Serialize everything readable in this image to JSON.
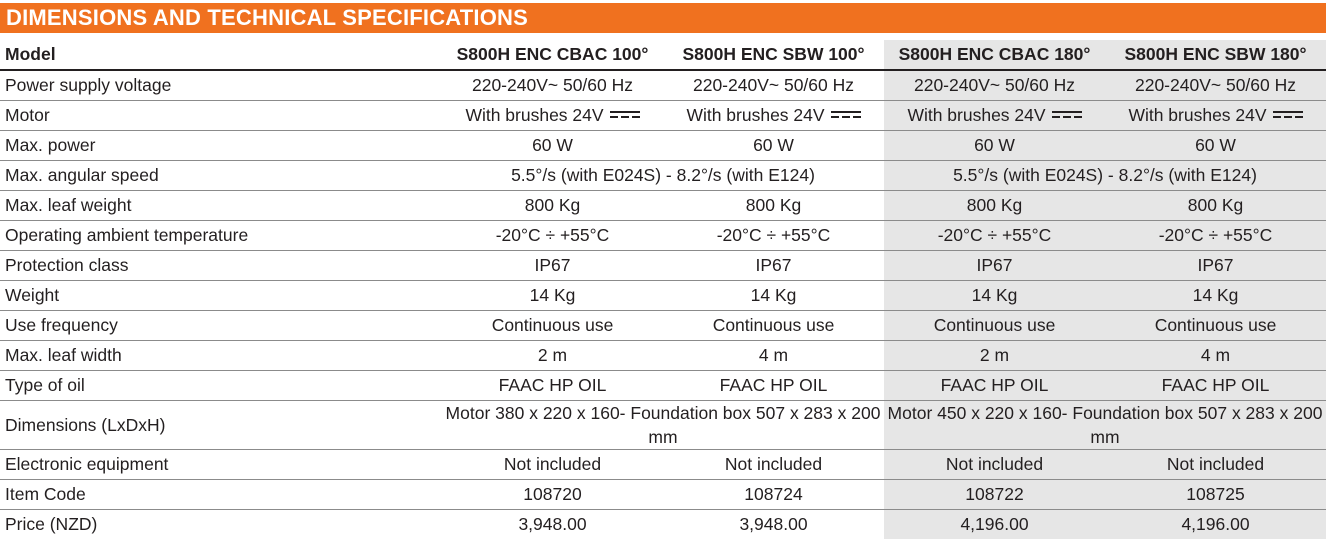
{
  "banner": {
    "title": "DIMENSIONS AND TECHNICAL SPECIFICATIONS"
  },
  "colors": {
    "accent": "#f0711f",
    "shade": "#e6e6e6",
    "rule": "#8b8b8b"
  },
  "table": {
    "header": {
      "label": "Model",
      "cols": [
        "S800H ENC CBAC 100°",
        "S800H ENC SBW 100°",
        "S800H ENC CBAC 180°",
        "S800H ENC SBW 180°"
      ]
    },
    "rows": {
      "power_supply": {
        "label": "Power supply voltage",
        "v": [
          "220-240V~ 50/60 Hz",
          "220-240V~ 50/60 Hz",
          "220-240V~ 50/60 Hz",
          "220-240V~ 50/60 Hz"
        ]
      },
      "motor": {
        "label": "Motor",
        "v": [
          "With brushes 24V",
          "With brushes 24V",
          "With brushes 24V",
          "With brushes 24V"
        ],
        "icon": "direct-current-symbol-icon"
      },
      "max_power": {
        "label": "Max. power",
        "v": [
          "60 W",
          "60 W",
          "60 W",
          "60 W"
        ]
      },
      "angular_speed": {
        "label": "Max. angular speed",
        "v": [
          "5.5°/s (with E024S) - 8.2°/s (with E124)",
          "5.5°/s (with E024S) - 8.2°/s (with E124)"
        ]
      },
      "leaf_weight": {
        "label": "Max. leaf weight",
        "v": [
          "800 Kg",
          "800 Kg",
          "800 Kg",
          "800 Kg"
        ]
      },
      "temperature": {
        "label": "Operating ambient temperature",
        "v": [
          "-20°C ÷ +55°C",
          "-20°C ÷ +55°C",
          "-20°C ÷ +55°C",
          "-20°C ÷ +55°C"
        ]
      },
      "protection": {
        "label": "Protection class",
        "v": [
          "IP67",
          "IP67",
          "IP67",
          "IP67"
        ]
      },
      "weight": {
        "label": "Weight",
        "v": [
          "14 Kg",
          "14 Kg",
          "14 Kg",
          "14 Kg"
        ]
      },
      "use_frequency": {
        "label": "Use frequency",
        "v": [
          "Continuous use",
          "Continuous use",
          "Continuous use",
          "Continuous use"
        ]
      },
      "leaf_width": {
        "label": "Max. leaf width",
        "v": [
          "2 m",
          "4 m",
          "2 m",
          "4 m"
        ]
      },
      "oil": {
        "label": "Type of oil",
        "v": [
          "FAAC HP OIL",
          "FAAC HP OIL",
          "FAAC HP OIL",
          "FAAC HP OIL"
        ]
      },
      "dimensions": {
        "label": "Dimensions (LxDxH)",
        "v": [
          "Motor 380 x 220 x 160- Foundation box 507 x 283 x 200 mm",
          "Motor  450 x 220 x 160- Foundation box 507 x 283 x 200 mm"
        ]
      },
      "electronics": {
        "label": "Electronic equipment",
        "v": [
          "Not included",
          "Not included",
          "Not included",
          "Not included"
        ]
      },
      "item_code": {
        "label": "Item Code",
        "v": [
          "108720",
          "108724",
          "108722",
          "108725"
        ]
      },
      "price": {
        "label": "Price (NZD)",
        "v": [
          "3,948.00",
          "3,948.00",
          "4,196.00",
          "4,196.00"
        ]
      }
    }
  }
}
